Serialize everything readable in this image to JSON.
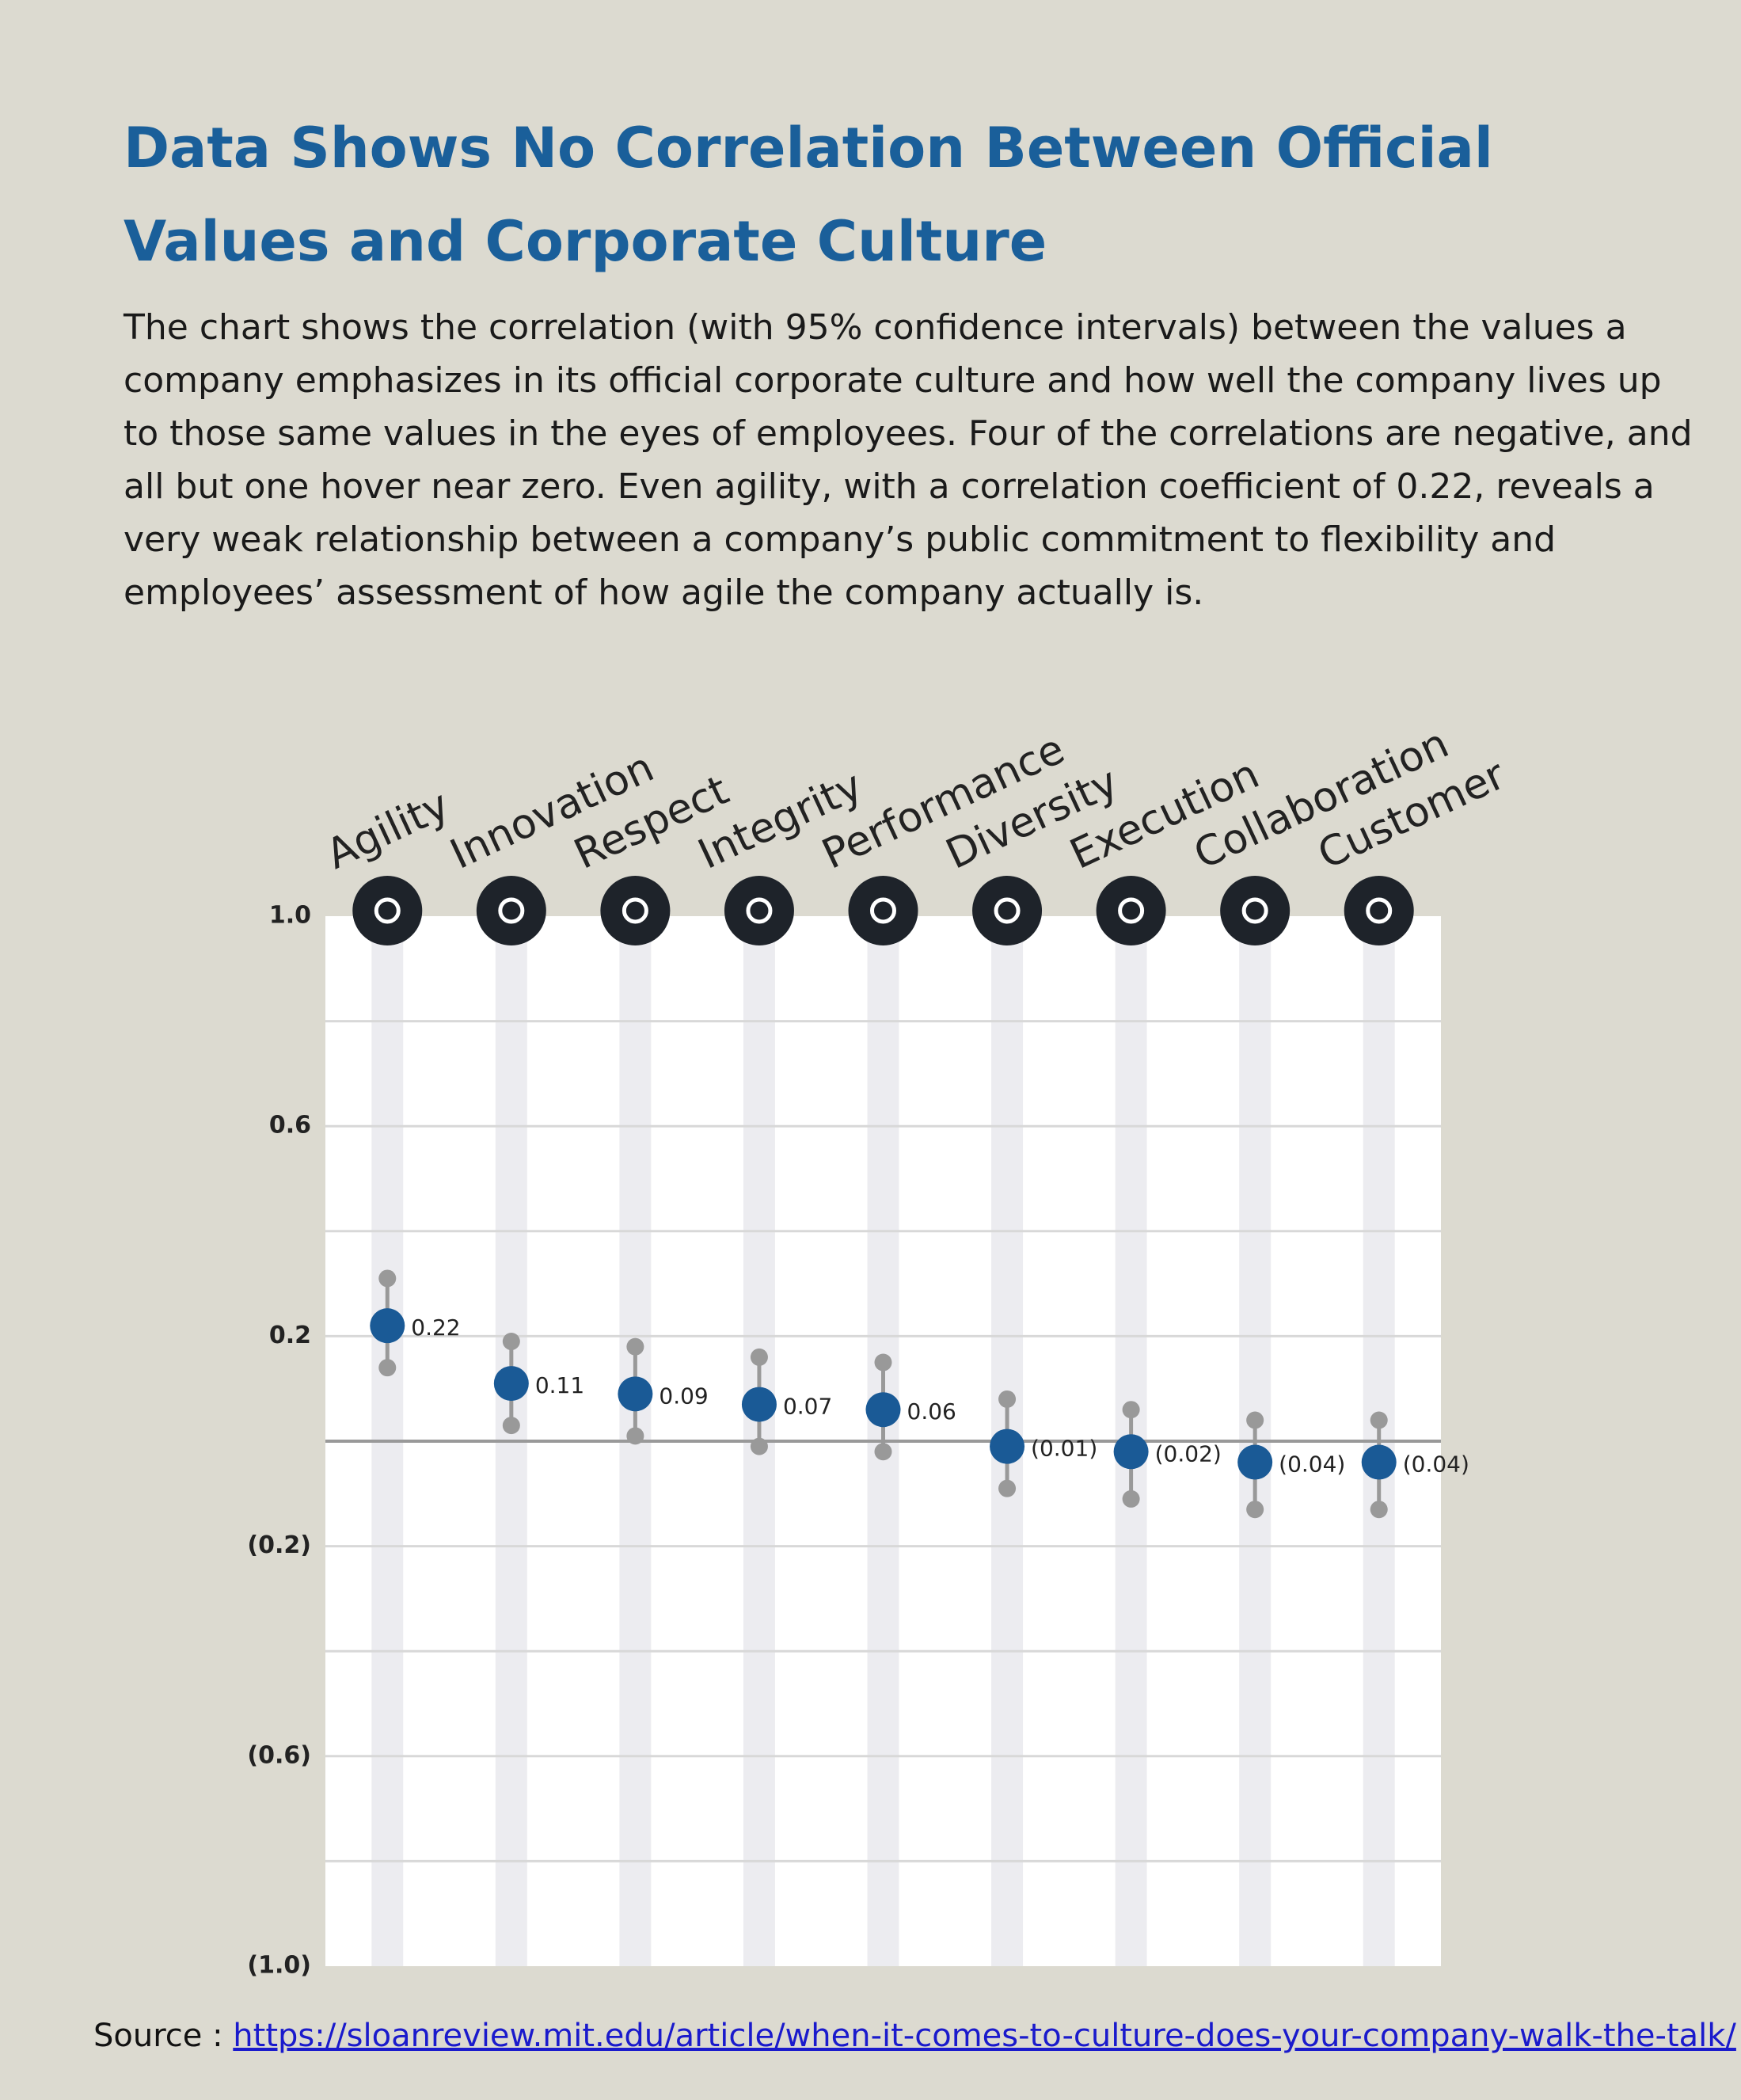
{
  "chart_data": {
    "type": "dot",
    "title": "Data Shows No Correlation Between Official Values and Corporate Culture",
    "categories": [
      "Agility",
      "Innovation",
      "Respect",
      "Integrity",
      "Performance",
      "Diversity",
      "Execution",
      "Collaboration",
      "Customer"
    ],
    "values": [
      0.22,
      0.11,
      0.09,
      0.07,
      0.06,
      -0.01,
      -0.02,
      -0.04,
      -0.04
    ],
    "value_labels": [
      "0.22",
      "0.11",
      "0.09",
      "0.07",
      "0.06",
      "(0.01)",
      "(0.02)",
      "(0.04)",
      "(0.04)"
    ],
    "lower": [
      0.14,
      0.03,
      0.01,
      -0.01,
      -0.02,
      -0.09,
      -0.11,
      -0.13,
      -0.13
    ],
    "upper": [
      0.31,
      0.19,
      0.18,
      0.16,
      0.15,
      0.08,
      0.06,
      0.04,
      0.04
    ],
    "color": "#1a5a96",
    "error_color": "#999999",
    "ylim": [
      -1,
      1
    ],
    "yticks": [
      {
        "value": 1,
        "label": "1.0"
      },
      0.6,
      0.2,
      {
        "value": -0.2,
        "label": "(0.2)"
      },
      {
        "value": -0.6,
        "label": "(0.6)"
      },
      {
        "value": -1,
        "label": "(1.0)"
      }
    ],
    "minor_yticks": [
      0.8,
      0.4,
      -0.4,
      -0.8
    ],
    "reference_line": 0,
    "grid": true
  },
  "description": "The chart shows the correlation (with 95% confidence intervals) between the values a company emphasizes in its official corporate culture and how well the company lives up to those same values in the eyes of employees. Four of the correlations are negative, and all but one hover near zero. Even agility, with a correlation coefficient of 0.22, reveals a very weak relationship between a company’s public commitment to flexibility and employees’ assessment of how agile the company actually is.",
  "source": {
    "label": "Source :",
    "url": "https://sloanreview.mit.edu/article/when-it-comes-to-culture-does-your-company-walk-the-talk/"
  }
}
